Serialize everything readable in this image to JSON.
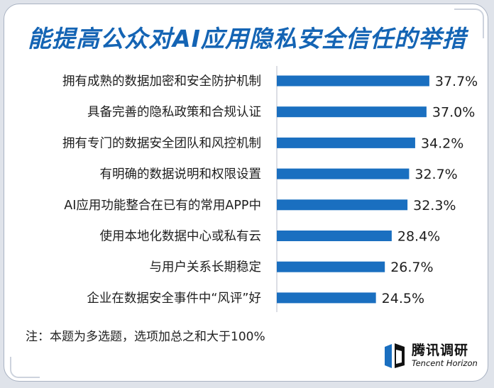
{
  "chart_data": {
    "type": "bar",
    "orientation": "horizontal",
    "title": "能提高公众对AI应用隐私安全信任的举措",
    "categories": [
      "拥有成熟的数据加密和安全防护机制",
      "具备完善的隐私政策和合规认证",
      "拥有专门的数据安全团队和风控机制",
      "有明确的数据说明和权限设置",
      "AI应用功能整合在已有的常用APP中",
      "使用本地化数据中心或私有云",
      "与用户关系长期稳定",
      "企业在数据安全事件中“风评”好"
    ],
    "values": [
      37.7,
      37.0,
      34.2,
      32.7,
      32.3,
      28.4,
      26.7,
      24.5
    ],
    "value_labels": [
      "37.7%",
      "37.0%",
      "34.2%",
      "32.7%",
      "32.3%",
      "28.4%",
      "26.7%",
      "24.5%"
    ],
    "unit": "%",
    "bar_color": "#1a6fc0",
    "title_color": "#1464b4",
    "grid": false
  },
  "footnote": "注：本题为多选题，选项加总之和大于100%",
  "brand": {
    "name_cn": "腾讯调研",
    "name_en": "Tencent Horizon"
  }
}
